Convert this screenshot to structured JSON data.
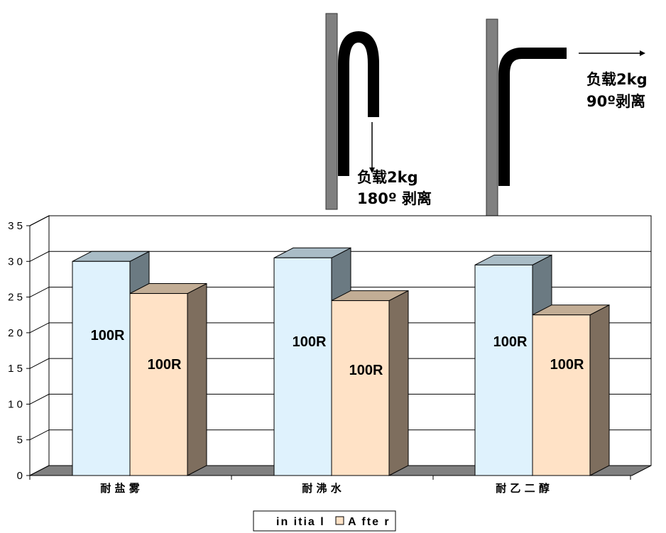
{
  "chart_data": {
    "type": "bar",
    "categories": [
      "耐 盐 雾",
      "耐 沸 水",
      "耐 乙 二 醇"
    ],
    "series": [
      {
        "name": "in itia l",
        "values": [
          30,
          30.5,
          29.5
        ],
        "labels": [
          "100R",
          "100R",
          "100R"
        ]
      },
      {
        "name": "A fte r",
        "values": [
          25.5,
          24.5,
          22.5
        ],
        "labels": [
          "100R",
          "100R",
          "100R"
        ]
      }
    ],
    "yticks": [
      "0",
      "5",
      "1 0",
      "1 5",
      "2 0",
      "2 5",
      "3 0",
      "3 5"
    ],
    "ylim": [
      0,
      35
    ],
    "grid": true,
    "legend": "bottom-center",
    "colors": {
      "initial_front": "#dff2fd",
      "initial_side": "#6b7a82",
      "initial_top": "#a9bcc6",
      "after_front": "#ffe2c6",
      "after_side": "#7e6e5e",
      "after_top": "#c2ad95",
      "floor": "#808080",
      "post": "#808080",
      "tape": "#000000"
    }
  },
  "annotations": {
    "peel180": {
      "line1": "负载2kg",
      "line2": "180º 剥离"
    },
    "peel90": {
      "line1": "负载2kg",
      "line2": "90º剥离"
    }
  }
}
